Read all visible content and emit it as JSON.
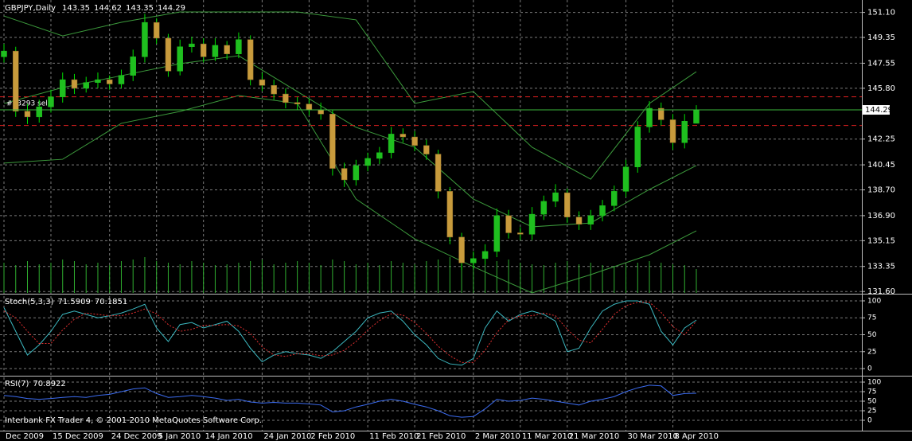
{
  "chart_data": [
    {
      "type": "candlestick",
      "title": "GBPJPY,Daily",
      "categories": [
        "Dec 2009",
        null,
        null,
        null,
        "15 Dec 2009",
        null,
        null,
        null,
        null,
        "24 Dec 2009",
        null,
        null,
        null,
        "5 Jan 2010",
        null,
        null,
        null,
        "14 Jan 2010",
        null,
        null,
        null,
        null,
        "24 Jan 2010",
        null,
        null,
        null,
        "2 Feb 2010",
        null,
        null,
        null,
        null,
        "11 Feb 2010",
        null,
        null,
        null,
        "21 Feb 2010",
        null,
        null,
        null,
        null,
        "2 Mar 2010",
        null,
        null,
        null,
        "11 Mar 2010",
        null,
        null,
        null,
        "21 Mar 2010",
        null,
        null,
        null,
        null,
        "30 Mar 2010",
        null,
        null,
        null,
        "8 Apr 2010",
        null,
        null
      ],
      "open": [
        148.0,
        148.4,
        144.2,
        143.8,
        144.5,
        145.2,
        146.4,
        145.8,
        146.2,
        146.4,
        146.1,
        146.7,
        148.0,
        150.4,
        149.3,
        147.0,
        148.7,
        148.9,
        148.0,
        148.8,
        148.2,
        149.2,
        146.4,
        146.0,
        145.4,
        144.8,
        144.7,
        144.3,
        144.0,
        140.2,
        139.4,
        140.4,
        140.9,
        141.3,
        142.6,
        142.4,
        141.8,
        141.2,
        138.6,
        135.4,
        133.6,
        133.9,
        134.4,
        136.9,
        135.7,
        135.6,
        137.0,
        137.9,
        138.5,
        136.8,
        136.3,
        136.9,
        137.6,
        138.6,
        140.3,
        143.1,
        144.4,
        143.6,
        142.0,
        143.35
      ],
      "high": [
        148.9,
        148.7,
        144.7,
        145.0,
        145.7,
        146.9,
        146.8,
        146.6,
        146.9,
        146.7,
        147.1,
        148.5,
        151.0,
        150.7,
        149.6,
        149.2,
        149.4,
        149.3,
        149.3,
        149.1,
        149.7,
        149.5,
        146.9,
        146.4,
        145.8,
        145.2,
        145.1,
        144.8,
        144.3,
        140.6,
        140.8,
        141.3,
        141.7,
        143.1,
        143.0,
        142.8,
        142.2,
        141.5,
        138.9,
        135.7,
        134.4,
        134.9,
        137.4,
        137.3,
        136.1,
        137.5,
        138.3,
        139.1,
        138.8,
        137.2,
        137.3,
        138.0,
        139.0,
        140.8,
        143.5,
        144.9,
        144.8,
        144.0,
        144.0,
        144.62
      ],
      "low": [
        147.6,
        143.8,
        143.3,
        143.4,
        144.1,
        144.8,
        145.4,
        145.5,
        145.8,
        145.7,
        145.8,
        146.3,
        147.6,
        148.9,
        146.6,
        146.7,
        148.3,
        147.6,
        147.7,
        147.8,
        147.9,
        146.0,
        145.6,
        145.0,
        144.4,
        144.3,
        143.9,
        143.6,
        139.7,
        138.9,
        139.0,
        140.0,
        140.5,
        140.9,
        142.0,
        141.4,
        140.8,
        138.1,
        134.9,
        133.1,
        133.2,
        133.5,
        134.0,
        135.3,
        135.2,
        135.2,
        136.6,
        137.5,
        136.4,
        135.9,
        135.9,
        136.5,
        137.2,
        138.2,
        139.9,
        142.7,
        143.2,
        141.5,
        141.6,
        143.35
      ],
      "close": [
        148.4,
        144.2,
        143.8,
        144.5,
        145.2,
        146.4,
        145.8,
        146.2,
        146.4,
        146.1,
        146.7,
        148.0,
        150.4,
        149.3,
        147.0,
        148.7,
        148.9,
        148.0,
        148.8,
        148.2,
        149.2,
        146.4,
        146.0,
        145.4,
        144.8,
        144.7,
        144.3,
        144.0,
        140.2,
        139.4,
        140.4,
        140.9,
        141.3,
        142.6,
        142.4,
        141.8,
        141.2,
        138.6,
        135.4,
        133.6,
        133.9,
        134.4,
        136.9,
        135.7,
        135.6,
        137.0,
        137.9,
        138.5,
        136.8,
        136.3,
        136.9,
        137.6,
        138.6,
        140.3,
        143.1,
        144.4,
        143.6,
        142.0,
        143.5,
        144.29
      ],
      "volume": [
        38,
        35,
        40,
        36,
        38,
        42,
        40,
        36,
        38,
        35,
        40,
        42,
        45,
        40,
        38,
        36,
        40,
        38,
        35,
        36,
        38,
        40,
        42,
        36,
        38,
        40,
        38,
        35,
        42,
        40,
        36,
        38,
        35,
        40,
        38,
        36,
        40,
        42,
        45,
        40,
        38,
        36,
        40,
        42,
        38,
        36,
        35,
        38,
        40,
        36,
        38,
        35,
        34,
        36,
        38,
        40,
        38,
        36,
        35,
        30
      ],
      "bands": [
        {
          "color": "#3c9a3c",
          "x": [
            0,
            5,
            10,
            15,
            20,
            25,
            30,
            35,
            40,
            45,
            50,
            55,
            59
          ],
          "values": [
            150.85,
            149.46,
            150.41,
            151.13,
            151.13,
            151.13,
            150.58,
            144.74,
            145.57,
            141.68,
            139.45,
            144.74,
            146.96
          ]
        },
        {
          "color": "#3c9a3c",
          "x": [
            0,
            5,
            10,
            15,
            20,
            25,
            30,
            35,
            40,
            45,
            50,
            55,
            59
          ],
          "values": [
            144.74,
            145.85,
            146.68,
            147.52,
            148.07,
            145.57,
            143.07,
            141.68,
            138.06,
            136.12,
            136.39,
            138.73,
            140.4
          ]
        },
        {
          "color": "#3c9a3c",
          "x": [
            0,
            5,
            10,
            15,
            20,
            25,
            30,
            35,
            40,
            45,
            50,
            55,
            59
          ],
          "values": [
            140.57,
            140.84,
            143.35,
            144.18,
            145.29,
            144.74,
            138.06,
            135.28,
            133.33,
            131.5,
            132.78,
            134.17,
            135.84
          ]
        }
      ],
      "levels": [
        145.2,
        143.2
      ],
      "level_color": "#e02020",
      "level_label": "#73293 sell",
      "up_color": "#1fbf1f",
      "down_color": "#c89b3c",
      "wick_color": "#00e000",
      "volume_color": "#2fae2f",
      "bid_color": "#3cb83c",
      "ylim": [
        131.5,
        151.8
      ],
      "yticks": [
        {
          "value": 151.1,
          "label": "151.10"
        },
        {
          "value": 149.35,
          "label": "149.35"
        },
        {
          "value": 147.55,
          "label": "147.55"
        },
        {
          "value": 145.8,
          "label": "145.80"
        },
        {
          "value": 142.25,
          "label": "142.25"
        },
        {
          "value": 140.45,
          "label": "140.45"
        },
        {
          "value": 138.7,
          "label": "138.70"
        },
        {
          "value": 136.9,
          "label": "136.90"
        },
        {
          "value": 135.15,
          "label": "135.15"
        },
        {
          "value": 133.35,
          "label": "133.35"
        },
        {
          "value": 131.6,
          "label": "131.60"
        }
      ],
      "grid": true
    },
    {
      "type": "line",
      "title": "Stoch(5,3,3)",
      "series": [
        {
          "color": "#3cb8c0",
          "dash": false,
          "values": [
            90,
            55,
            20,
            35,
            55,
            80,
            85,
            80,
            75,
            78,
            82,
            88,
            95,
            60,
            40,
            65,
            68,
            60,
            65,
            70,
            55,
            30,
            10,
            20,
            25,
            22,
            20,
            15,
            25,
            40,
            55,
            75,
            82,
            85,
            70,
            50,
            35,
            15,
            7,
            5,
            15,
            60,
            85,
            70,
            80,
            85,
            80,
            70,
            25,
            30,
            60,
            85,
            95,
            100,
            100,
            95,
            55,
            35,
            60,
            71.5909
          ]
        },
        {
          "color": "#e03030",
          "dash": true,
          "values": [
            85,
            75,
            55,
            37,
            37,
            57,
            73,
            82,
            80,
            78,
            78,
            82,
            88,
            81,
            65,
            55,
            58,
            64,
            64,
            65,
            63,
            52,
            32,
            20,
            18,
            22,
            22,
            19,
            20,
            27,
            40,
            57,
            71,
            81,
            79,
            68,
            52,
            33,
            19,
            9,
            9,
            27,
            53,
            72,
            78,
            78,
            82,
            78,
            58,
            42,
            38,
            58,
            80,
            93,
            98,
            98,
            83,
            62,
            50,
            70.1851
          ]
        }
      ],
      "ylim": [
        -8.2,
        108.2
      ],
      "yticks": [
        0,
        25,
        50,
        75,
        100
      ],
      "grid": true
    },
    {
      "type": "line",
      "title": "RSI(7)",
      "series": [
        {
          "color": "#3c6cf0",
          "dash": false,
          "values": [
            65,
            62,
            57,
            55,
            57,
            60,
            62,
            60,
            65,
            68,
            75,
            82,
            85,
            70,
            60,
            62,
            65,
            62,
            58,
            52,
            55,
            48,
            45,
            47,
            45,
            45,
            43,
            40,
            22,
            25,
            35,
            42,
            50,
            55,
            50,
            42,
            35,
            25,
            12,
            8,
            10,
            30,
            55,
            50,
            52,
            58,
            55,
            50,
            45,
            40,
            50,
            55,
            62,
            75,
            85,
            92,
            90,
            65,
            70,
            70.8922
          ]
        }
      ],
      "ylim": [
        -25,
        112.5
      ],
      "yticks": [
        0,
        25,
        50,
        75,
        100
      ],
      "grid": true
    }
  ],
  "footer": "Interbank FX Trader 4, © 2001-2010 MetaQuotes Software Corp."
}
